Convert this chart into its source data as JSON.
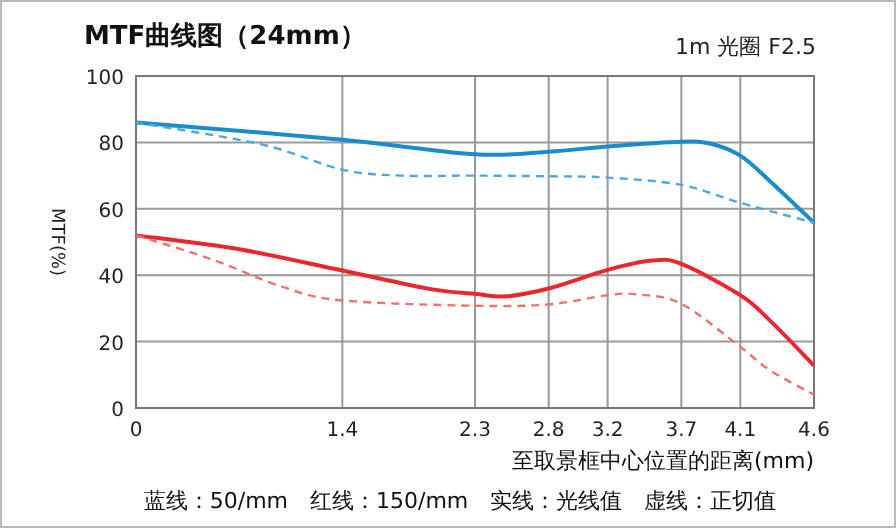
{
  "chart_data": {
    "type": "line",
    "title": "MTF曲线图（24mm）",
    "subtitle": "1m 光圈 F2.5",
    "xlabel": "至取景框中心位置的距离(mm)",
    "ylabel": "MTF(%)",
    "annotations": [
      "蓝线：50/mm　红线：150/mm　实线：光线值　虚线：正切值"
    ],
    "xlim": [
      0,
      4.6
    ],
    "xticks": [
      0,
      1.4,
      2.3,
      2.8,
      3.2,
      3.7,
      4.1,
      4.6
    ],
    "ylim": [
      0,
      100
    ],
    "yticks": [
      0,
      20,
      40,
      60,
      80,
      100
    ],
    "grid": true,
    "marker": "none",
    "series": [
      {
        "color": "#1a8ccc",
        "line_style": "solid",
        "x": [
          0,
          1.4,
          2.3,
          2.8,
          3.2,
          3.7,
          3.9,
          4.1,
          4.3,
          4.6
        ],
        "values": [
          86,
          80.8,
          76.4,
          77.2,
          78.8,
          80.2,
          79.6,
          76,
          68.4,
          55.8
        ]
      },
      {
        "color": "#4aa8dc",
        "line_style": "dashed",
        "x": [
          0,
          0.85,
          1.4,
          1.8,
          2.3,
          2.8,
          3.2,
          3.7,
          4.1,
          4.6
        ],
        "values": [
          86,
          79.4,
          71.8,
          70,
          70,
          69.8,
          69.4,
          67.2,
          61.8,
          55.8
        ]
      },
      {
        "color": "#e8282e",
        "line_style": "solid",
        "x": [
          0,
          0.7,
          1.4,
          2.0,
          2.3,
          2.5,
          2.8,
          3.2,
          3.5,
          3.7,
          4.1,
          4.3,
          4.6
        ],
        "values": [
          52,
          47.8,
          41.4,
          35.8,
          34.4,
          33.6,
          36,
          41.6,
          44.4,
          43.4,
          34,
          26.4,
          12.8
        ]
      },
      {
        "color": "#f07070",
        "line_style": "dashed",
        "x": [
          0,
          0.5,
          1.0,
          1.4,
          2.3,
          2.8,
          3.2,
          3.4,
          3.7,
          4.1,
          4.3,
          4.6
        ],
        "values": [
          52,
          45,
          36.4,
          32.4,
          30.8,
          31.2,
          34,
          34.2,
          31.4,
          18.4,
          11.4,
          4
        ]
      }
    ]
  }
}
